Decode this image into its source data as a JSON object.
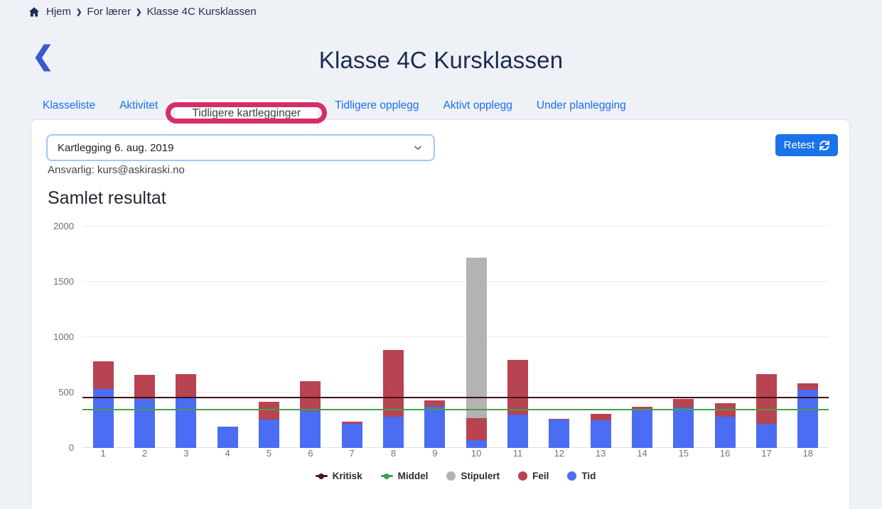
{
  "breadcrumb": {
    "items": [
      "Hjem",
      "For lærer",
      "Klasse 4C Kursklassen"
    ]
  },
  "header": {
    "title": "Klasse 4C Kursklassen",
    "back_icon": "❮"
  },
  "tabs": {
    "items": [
      {
        "label": "Klasseliste",
        "active": false
      },
      {
        "label": "Aktivitet",
        "active": false
      },
      {
        "label": "Tidligere kartlegginger",
        "active": true
      },
      {
        "label": "Tidligere opplegg",
        "active": false
      },
      {
        "label": "Aktivt opplegg",
        "active": false
      },
      {
        "label": "Under planlegging",
        "active": false
      }
    ],
    "highlight_color": "#d62d69"
  },
  "panel": {
    "kartlegging_select": {
      "value": "Kartlegging 6. aug. 2019"
    },
    "retest_button": {
      "label": "Retest",
      "color": "#1a73e8"
    },
    "ansvarlig": "Ansvarlig: kurs@askiraski.no",
    "section_title": "Samlet resultat"
  },
  "chart_data": {
    "type": "bar",
    "stacked": true,
    "title": "Samlet resultat",
    "categories": [
      "1",
      "2",
      "3",
      "4",
      "5",
      "6",
      "7",
      "8",
      "9",
      "10",
      "11",
      "12",
      "13",
      "14",
      "15",
      "16",
      "17",
      "18"
    ],
    "series": [
      {
        "name": "Tid",
        "color": "#4a6df3",
        "values": [
          530,
          440,
          455,
          195,
          255,
          335,
          220,
          280,
          370,
          70,
          300,
          255,
          250,
          345,
          365,
          285,
          215,
          525
        ]
      },
      {
        "name": "Feil",
        "color": "#b84351",
        "values": [
          250,
          220,
          215,
          0,
          160,
          265,
          15,
          605,
          60,
          200,
          495,
          10,
          60,
          30,
          80,
          120,
          455,
          60
        ]
      },
      {
        "name": "Stipulert",
        "color": "#b3b3b3",
        "values": [
          0,
          0,
          0,
          0,
          0,
          0,
          0,
          0,
          0,
          1450,
          0,
          0,
          0,
          0,
          0,
          0,
          0,
          0
        ]
      }
    ],
    "reference_lines": [
      {
        "name": "Kritisk",
        "value": 455,
        "color": "#3c1217"
      },
      {
        "name": "Middel",
        "value": 345,
        "color": "#43a047"
      }
    ],
    "ylim": [
      0,
      2000
    ],
    "yticks": [
      0,
      500,
      1000,
      1500,
      2000
    ],
    "grid": true,
    "legend_position": "bottom",
    "legend_items": [
      {
        "label": "Kritisk",
        "marker": "line",
        "color": "#4a161b"
      },
      {
        "label": "Middel",
        "marker": "line",
        "color": "#3da14e"
      },
      {
        "label": "Stipulert",
        "marker": "circle",
        "color": "#b3b3b3"
      },
      {
        "label": "Feil",
        "marker": "circle",
        "color": "#b94350"
      },
      {
        "label": "Tid",
        "marker": "circle",
        "color": "#4a70f0"
      }
    ]
  }
}
